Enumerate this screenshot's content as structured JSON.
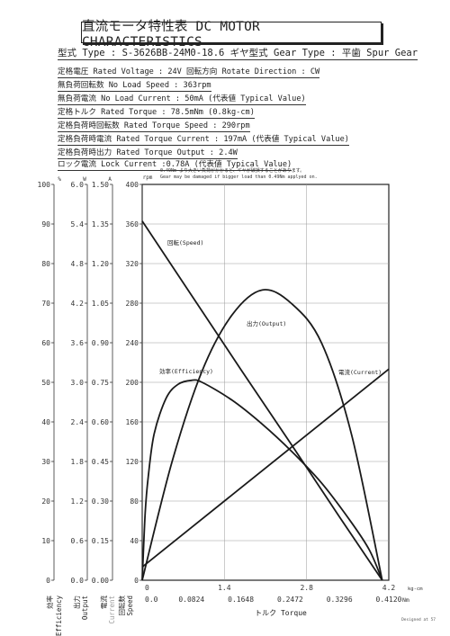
{
  "header": {
    "title": "直流モータ特性表 DC MOTOR CHARACTERISTICS",
    "type_line": "型式 Type : S-3626BB-24M0-18.6 ギヤ型式 Gear Type : 平歯  Spur Gear"
  },
  "specs": [
    "定格電圧 Rated Voltage : 24V   回転方向 Rotate Direction : CW",
    "無負荷回転数 No Load Speed : 363rpm",
    "無負荷電流 No Load Current : 50mA (代表値 Typical Value)",
    "定格トルク Rated Torque : 78.5mNm (0.8kg-cm)",
    "定格負荷時回転数 Rated Torque Speed : 290rpm",
    "定格負荷時電流 Rated Torque Current : 197mA (代表値 Typical Value)",
    "定格負荷時出力 Rated Torque Output : 2.4W",
    "ロック電流 Lock Current :0.78A (代表値 Typical Value)"
  ],
  "warning": {
    "jp": "0.49Nm より大きい負荷がかかると、ギヤが破損することがあります。",
    "en": "Gear may be damaged if bigger load than 0.49Nm applyed on."
  },
  "footer": {
    "designed": "Designed at 57"
  },
  "chart_data": {
    "type": "line",
    "xlabel": "トルク Torque",
    "x_unit_bottom": "Nm",
    "x_unit_top": "kg-cm",
    "x_ticks_top": [
      "0",
      "1.4",
      "2.8",
      "4.2"
    ],
    "x_ticks_bottom": [
      "0.0",
      "0.0824",
      "0.1648",
      "0.2472",
      "0.3296",
      "0.4120"
    ],
    "xlim": [
      0,
      0.412
    ],
    "axes": [
      {
        "key": "efficiency",
        "unit": "%",
        "label_jp": "効率",
        "label_en": "Efficiency",
        "ticks": [
          "0",
          "10",
          "20",
          "30",
          "40",
          "50",
          "60",
          "70",
          "80",
          "90",
          "100"
        ]
      },
      {
        "key": "output",
        "unit": "W",
        "label_jp": "出力",
        "label_en": "Output",
        "ticks": [
          "0.0",
          "0.6",
          "1.2",
          "1.8",
          "2.4",
          "3.0",
          "3.6",
          "4.2",
          "4.8",
          "5.4",
          "6.0"
        ]
      },
      {
        "key": "current",
        "unit": "A",
        "label_jp": "電流",
        "label_en": "Current",
        "ticks": [
          "0.00",
          "0.15",
          "0.30",
          "0.45",
          "0.60",
          "0.75",
          "0.90",
          "1.05",
          "1.20",
          "1.35",
          "1.50"
        ]
      },
      {
        "key": "speed",
        "unit": "rpm",
        "label_jp": "回転数",
        "label_en": "Speed",
        "ticks": [
          "0",
          "40",
          "80",
          "120",
          "160",
          "200",
          "240",
          "280",
          "320",
          "360",
          "400"
        ]
      }
    ],
    "series": [
      {
        "name": "回転(Speed)",
        "axis": "speed",
        "x": [
          0,
          0.0824,
          0.1648,
          0.2472,
          0.3296,
          0.401
        ],
        "y": [
          363,
          288,
          213,
          139,
          64,
          0
        ]
      },
      {
        "name": "電流(Current)",
        "axis": "current",
        "x": [
          0,
          0.0824,
          0.1648,
          0.2472,
          0.3296,
          0.401,
          0.412
        ],
        "y": [
          0.05,
          0.2,
          0.35,
          0.5,
          0.65,
          0.78,
          0.8
        ]
      },
      {
        "name": "出力(Output)",
        "axis": "output",
        "x": [
          0,
          0.05,
          0.1,
          0.15,
          0.2005,
          0.25,
          0.3,
          0.35,
          0.401
        ],
        "y": [
          0,
          1.8,
          3.17,
          4.02,
          4.4,
          4.19,
          3.59,
          2.2,
          0
        ]
      },
      {
        "name": "効率(Efficiency)",
        "axis": "efficiency",
        "x": [
          0,
          0.005,
          0.01,
          0.02,
          0.04,
          0.06,
          0.0824,
          0.1,
          0.15,
          0.2,
          0.25,
          0.3,
          0.35,
          0.38,
          0.401
        ],
        "y": [
          0,
          17,
          26,
          37,
          46,
          49.5,
          50.5,
          50,
          45.5,
          39.5,
          32.5,
          24.5,
          14.5,
          7.5,
          0
        ]
      }
    ]
  }
}
